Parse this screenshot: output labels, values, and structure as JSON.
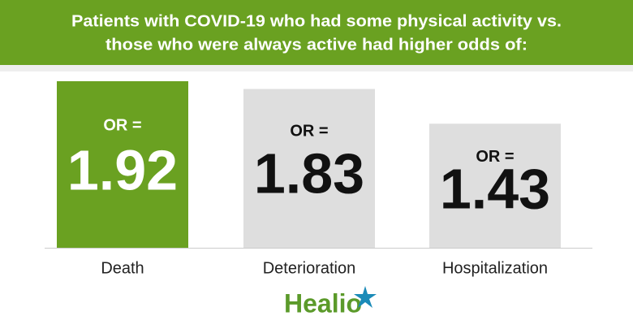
{
  "chart_data": {
    "type": "bar",
    "title": [
      "Patients with COVID-19 who had some physical activity vs.",
      "those who were always active had higher odds of:"
    ],
    "value_prefix": "OR =",
    "categories": [
      "Death",
      "Deterioration",
      "Hospitalization"
    ],
    "values": [
      1.92,
      1.83,
      1.43
    ],
    "colors": [
      "#6aa121",
      "#dedede",
      "#dedede"
    ],
    "value_label_colors": [
      "#ffffff",
      "#111111",
      "#111111"
    ],
    "header_color": "#6aa121",
    "logo": "Healio"
  }
}
